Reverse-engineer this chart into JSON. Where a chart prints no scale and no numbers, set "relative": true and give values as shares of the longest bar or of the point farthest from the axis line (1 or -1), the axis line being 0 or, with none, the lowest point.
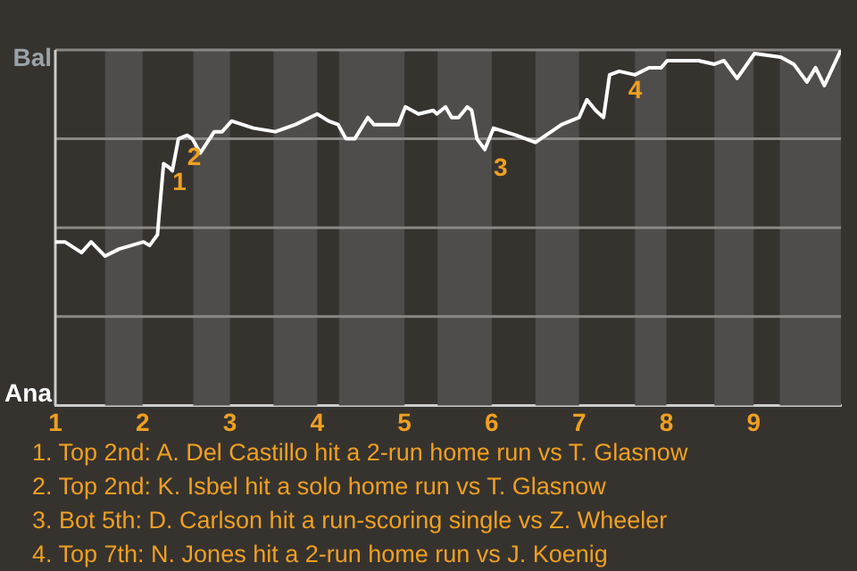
{
  "chart_data": {
    "type": "line",
    "relative": true,
    "x": [
      1,
      1.11,
      1.3,
      1.41,
      1.57,
      1.73,
      2.01,
      2.08,
      2.17,
      2.19,
      2.24,
      2.3,
      2.34,
      2.41,
      2.51,
      2.57,
      2.66,
      2.82,
      2.91,
      3.02,
      3.27,
      3.52,
      3.75,
      4,
      4.13,
      4.24,
      4.33,
      4.43,
      4.58,
      4.65,
      4.93,
      5.01,
      5.16,
      5.33,
      5.37,
      5.47,
      5.54,
      5.62,
      5.72,
      5.77,
      5.83,
      5.92,
      6.02,
      6.28,
      6.5,
      6.8,
      7,
      7.09,
      7.19,
      7.28,
      7.35,
      7.46,
      7.64,
      7.8,
      7.94,
      8.01,
      8.19,
      8.37,
      8.55,
      8.66,
      8.81,
      9.01,
      9.31,
      9.46,
      9.61,
      9.71,
      9.81,
      10
    ],
    "series": [
      {
        "color": "#ffffff",
        "values": [
          0.46,
          0.46,
          0.43,
          0.46,
          0.42,
          0.44,
          0.46,
          0.45,
          0.48,
          0.54,
          0.68,
          0.67,
          0.66,
          0.75,
          0.76,
          0.75,
          0.71,
          0.77,
          0.77,
          0.8,
          0.78,
          0.77,
          0.79,
          0.82,
          0.8,
          0.79,
          0.75,
          0.75,
          0.81,
          0.79,
          0.79,
          0.84,
          0.82,
          0.83,
          0.82,
          0.84,
          0.81,
          0.81,
          0.84,
          0.83,
          0.75,
          0.72,
          0.78,
          0.76,
          0.74,
          0.79,
          0.81,
          0.86,
          0.83,
          0.81,
          0.93,
          0.94,
          0.93,
          0.95,
          0.95,
          0.97,
          0.97,
          0.97,
          0.96,
          0.97,
          0.92,
          0.99,
          0.98,
          0.96,
          0.91,
          0.95,
          0.9,
          1.0
        ]
      }
    ],
    "xlim": [
      1,
      10
    ],
    "xticks": [
      1,
      2,
      3,
      4,
      5,
      6,
      7,
      8,
      9
    ],
    "grid": "y",
    "marker": "none",
    "line_style": "solid",
    "bands": [
      {
        "axis": "x",
        "from": 1.57,
        "to": 2,
        "color": "#4f4d4b"
      },
      {
        "axis": "x",
        "from": 2.58,
        "to": 3,
        "color": "#4f4d4b"
      },
      {
        "axis": "x",
        "from": 3.5,
        "to": 4,
        "color": "#4f4d4b"
      },
      {
        "axis": "x",
        "from": 4.25,
        "to": 5,
        "color": "#4f4d4b"
      },
      {
        "axis": "x",
        "from": 5.38,
        "to": 6,
        "color": "#4f4d4b"
      },
      {
        "axis": "x",
        "from": 6.5,
        "to": 7,
        "color": "#4f4d4b"
      },
      {
        "axis": "x",
        "from": 7.64,
        "to": 8,
        "color": "#4f4d4b"
      },
      {
        "axis": "x",
        "from": 8.55,
        "to": 9,
        "color": "#4f4d4b"
      },
      {
        "axis": "x",
        "from": 9.3,
        "to": 10,
        "color": "#4f4d4b"
      }
    ],
    "annotations": [
      "Bal",
      "Ana",
      {
        "text": "1",
        "x": 2.24,
        "y": 0.68
      },
      {
        "text": "2",
        "x": 2.41,
        "y": 0.75
      },
      {
        "text": "3",
        "x": 5.92,
        "y": 0.72
      },
      {
        "text": "4",
        "x": 7.46,
        "y": 0.94
      },
      "1. Top 2nd: A. Del Castillo hit a 2-run home run vs T. Glasnow",
      "2. Top 2nd: K. Isbel hit a solo home run vs T. Glasnow",
      "3. Bot 5th: D. Carlson hit a run-scoring single vs Z. Wheeler",
      "4. Top 7th: N. Jones hit a 2-run home run vs J. Koenig"
    ]
  }
}
